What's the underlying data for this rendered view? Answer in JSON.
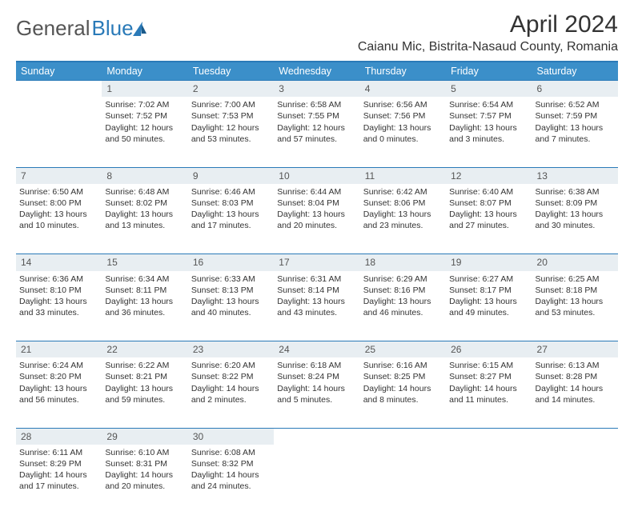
{
  "logo": {
    "part1": "General",
    "part2": "Blue"
  },
  "title": "April 2024",
  "location": "Caianu Mic, Bistrita-Nasaud County, Romania",
  "weekdays": [
    "Sunday",
    "Monday",
    "Tuesday",
    "Wednesday",
    "Thursday",
    "Friday",
    "Saturday"
  ],
  "colors": {
    "header_bg": "#3b8fc9",
    "border": "#2a7ab8",
    "daynum_bg": "#e8eef2",
    "text": "#333333",
    "background": "#ffffff"
  },
  "weeks": [
    {
      "nums": [
        "",
        "1",
        "2",
        "3",
        "4",
        "5",
        "6"
      ],
      "cells": [
        {
          "sr": "",
          "ss": "",
          "d1": "",
          "d2": ""
        },
        {
          "sr": "Sunrise: 7:02 AM",
          "ss": "Sunset: 7:52 PM",
          "d1": "Daylight: 12 hours",
          "d2": "and 50 minutes."
        },
        {
          "sr": "Sunrise: 7:00 AM",
          "ss": "Sunset: 7:53 PM",
          "d1": "Daylight: 12 hours",
          "d2": "and 53 minutes."
        },
        {
          "sr": "Sunrise: 6:58 AM",
          "ss": "Sunset: 7:55 PM",
          "d1": "Daylight: 12 hours",
          "d2": "and 57 minutes."
        },
        {
          "sr": "Sunrise: 6:56 AM",
          "ss": "Sunset: 7:56 PM",
          "d1": "Daylight: 13 hours",
          "d2": "and 0 minutes."
        },
        {
          "sr": "Sunrise: 6:54 AM",
          "ss": "Sunset: 7:57 PM",
          "d1": "Daylight: 13 hours",
          "d2": "and 3 minutes."
        },
        {
          "sr": "Sunrise: 6:52 AM",
          "ss": "Sunset: 7:59 PM",
          "d1": "Daylight: 13 hours",
          "d2": "and 7 minutes."
        }
      ]
    },
    {
      "nums": [
        "7",
        "8",
        "9",
        "10",
        "11",
        "12",
        "13"
      ],
      "cells": [
        {
          "sr": "Sunrise: 6:50 AM",
          "ss": "Sunset: 8:00 PM",
          "d1": "Daylight: 13 hours",
          "d2": "and 10 minutes."
        },
        {
          "sr": "Sunrise: 6:48 AM",
          "ss": "Sunset: 8:02 PM",
          "d1": "Daylight: 13 hours",
          "d2": "and 13 minutes."
        },
        {
          "sr": "Sunrise: 6:46 AM",
          "ss": "Sunset: 8:03 PM",
          "d1": "Daylight: 13 hours",
          "d2": "and 17 minutes."
        },
        {
          "sr": "Sunrise: 6:44 AM",
          "ss": "Sunset: 8:04 PM",
          "d1": "Daylight: 13 hours",
          "d2": "and 20 minutes."
        },
        {
          "sr": "Sunrise: 6:42 AM",
          "ss": "Sunset: 8:06 PM",
          "d1": "Daylight: 13 hours",
          "d2": "and 23 minutes."
        },
        {
          "sr": "Sunrise: 6:40 AM",
          "ss": "Sunset: 8:07 PM",
          "d1": "Daylight: 13 hours",
          "d2": "and 27 minutes."
        },
        {
          "sr": "Sunrise: 6:38 AM",
          "ss": "Sunset: 8:09 PM",
          "d1": "Daylight: 13 hours",
          "d2": "and 30 minutes."
        }
      ]
    },
    {
      "nums": [
        "14",
        "15",
        "16",
        "17",
        "18",
        "19",
        "20"
      ],
      "cells": [
        {
          "sr": "Sunrise: 6:36 AM",
          "ss": "Sunset: 8:10 PM",
          "d1": "Daylight: 13 hours",
          "d2": "and 33 minutes."
        },
        {
          "sr": "Sunrise: 6:34 AM",
          "ss": "Sunset: 8:11 PM",
          "d1": "Daylight: 13 hours",
          "d2": "and 36 minutes."
        },
        {
          "sr": "Sunrise: 6:33 AM",
          "ss": "Sunset: 8:13 PM",
          "d1": "Daylight: 13 hours",
          "d2": "and 40 minutes."
        },
        {
          "sr": "Sunrise: 6:31 AM",
          "ss": "Sunset: 8:14 PM",
          "d1": "Daylight: 13 hours",
          "d2": "and 43 minutes."
        },
        {
          "sr": "Sunrise: 6:29 AM",
          "ss": "Sunset: 8:16 PM",
          "d1": "Daylight: 13 hours",
          "d2": "and 46 minutes."
        },
        {
          "sr": "Sunrise: 6:27 AM",
          "ss": "Sunset: 8:17 PM",
          "d1": "Daylight: 13 hours",
          "d2": "and 49 minutes."
        },
        {
          "sr": "Sunrise: 6:25 AM",
          "ss": "Sunset: 8:18 PM",
          "d1": "Daylight: 13 hours",
          "d2": "and 53 minutes."
        }
      ]
    },
    {
      "nums": [
        "21",
        "22",
        "23",
        "24",
        "25",
        "26",
        "27"
      ],
      "cells": [
        {
          "sr": "Sunrise: 6:24 AM",
          "ss": "Sunset: 8:20 PM",
          "d1": "Daylight: 13 hours",
          "d2": "and 56 minutes."
        },
        {
          "sr": "Sunrise: 6:22 AM",
          "ss": "Sunset: 8:21 PM",
          "d1": "Daylight: 13 hours",
          "d2": "and 59 minutes."
        },
        {
          "sr": "Sunrise: 6:20 AM",
          "ss": "Sunset: 8:22 PM",
          "d1": "Daylight: 14 hours",
          "d2": "and 2 minutes."
        },
        {
          "sr": "Sunrise: 6:18 AM",
          "ss": "Sunset: 8:24 PM",
          "d1": "Daylight: 14 hours",
          "d2": "and 5 minutes."
        },
        {
          "sr": "Sunrise: 6:16 AM",
          "ss": "Sunset: 8:25 PM",
          "d1": "Daylight: 14 hours",
          "d2": "and 8 minutes."
        },
        {
          "sr": "Sunrise: 6:15 AM",
          "ss": "Sunset: 8:27 PM",
          "d1": "Daylight: 14 hours",
          "d2": "and 11 minutes."
        },
        {
          "sr": "Sunrise: 6:13 AM",
          "ss": "Sunset: 8:28 PM",
          "d1": "Daylight: 14 hours",
          "d2": "and 14 minutes."
        }
      ]
    },
    {
      "nums": [
        "28",
        "29",
        "30",
        "",
        "",
        "",
        ""
      ],
      "cells": [
        {
          "sr": "Sunrise: 6:11 AM",
          "ss": "Sunset: 8:29 PM",
          "d1": "Daylight: 14 hours",
          "d2": "and 17 minutes."
        },
        {
          "sr": "Sunrise: 6:10 AM",
          "ss": "Sunset: 8:31 PM",
          "d1": "Daylight: 14 hours",
          "d2": "and 20 minutes."
        },
        {
          "sr": "Sunrise: 6:08 AM",
          "ss": "Sunset: 8:32 PM",
          "d1": "Daylight: 14 hours",
          "d2": "and 24 minutes."
        },
        {
          "sr": "",
          "ss": "",
          "d1": "",
          "d2": ""
        },
        {
          "sr": "",
          "ss": "",
          "d1": "",
          "d2": ""
        },
        {
          "sr": "",
          "ss": "",
          "d1": "",
          "d2": ""
        },
        {
          "sr": "",
          "ss": "",
          "d1": "",
          "d2": ""
        }
      ]
    }
  ]
}
